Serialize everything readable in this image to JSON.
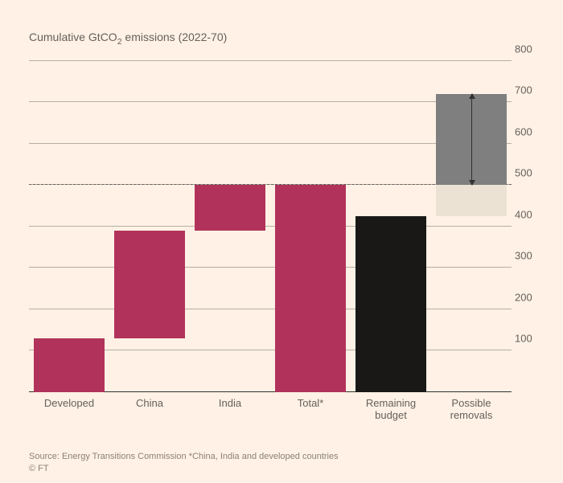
{
  "subtitle_pre": "Cumulative GtCO",
  "subtitle_sub": "2",
  "subtitle_post": " emissions (2022-70)",
  "chart": {
    "type": "waterfall-bar",
    "background_color": "#fff1e5",
    "grid_color": "#b8aea4",
    "baseline_color": "#33302e",
    "text_color": "#66605c",
    "y_axis": {
      "min": 0,
      "max": 800,
      "step": 100
    },
    "slot_count": 6,
    "reference_line": {
      "value": 500,
      "style": "dashed",
      "color": "#66605c"
    },
    "bars": [
      {
        "label": "Developed",
        "from": 0,
        "to": 130,
        "fill": "#b1335b"
      },
      {
        "label": "China",
        "from": 130,
        "to": 390,
        "fill": "#b1335b"
      },
      {
        "label": "India",
        "from": 390,
        "to": 500,
        "fill": "#b1335b"
      },
      {
        "label": "Total*",
        "from": 0,
        "to": 500,
        "fill": "#b1335b"
      },
      {
        "label": "Remaining\nbudget",
        "from": 0,
        "to": 425,
        "fill": "#1a1817"
      },
      {
        "label": "Possible\nremovals",
        "segments": [
          {
            "from": 425,
            "to": 500,
            "fill": "#ebe2d3"
          },
          {
            "from": 500,
            "to": 720,
            "fill": "#7f7f7f"
          }
        ],
        "arrow": {
          "from": 500,
          "to": 720,
          "color": "#33302e"
        }
      }
    ]
  },
  "footer": {
    "source": "Source: Energy Transitions Commission    *China, India and developed countries",
    "copyright": "© FT"
  }
}
